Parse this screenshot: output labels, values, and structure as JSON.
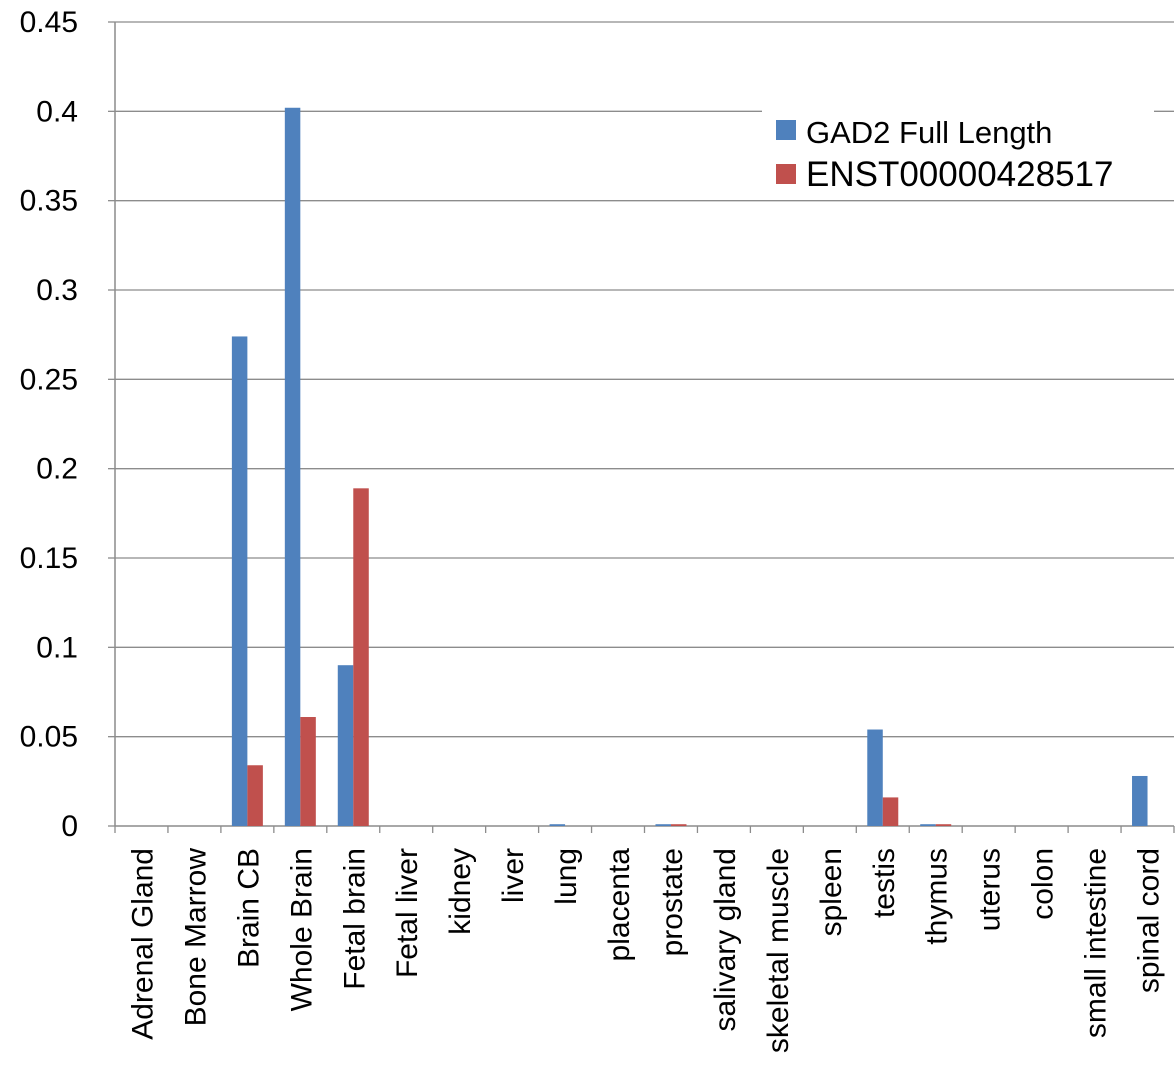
{
  "chart_data": {
    "type": "bar",
    "title": "",
    "xlabel": "",
    "ylabel": "",
    "ylim": [
      0,
      0.45
    ],
    "yticks": [
      0,
      0.05,
      0.1,
      0.15,
      0.2,
      0.25,
      0.3,
      0.35,
      0.4,
      0.45
    ],
    "ytick_labels": [
      "0",
      "0.05",
      "0.1",
      "0.15",
      "0.2",
      "0.25",
      "0.3",
      "0.35",
      "0.4",
      "0.45"
    ],
    "grid": "horizontal",
    "legend_position": "top-right",
    "categories": [
      "Adrenal Gland",
      "Bone Marrow",
      "Brain CB",
      "Whole Brain",
      "Fetal brain",
      "Fetal liver",
      "kidney",
      "liver",
      "lung",
      "placenta",
      "prostate",
      "salivary gland",
      "skeletal muscle",
      "spleen",
      "testis",
      "thymus",
      "uterus",
      "colon",
      "small intestine",
      "spinal cord"
    ],
    "series": [
      {
        "name": "GAD2 Full Length",
        "color": "#4f81bd",
        "values": [
          0,
          0,
          0.274,
          0.402,
          0.09,
          0,
          0,
          0,
          0.001,
          0,
          0.001,
          0,
          0,
          0,
          0.054,
          0.001,
          0,
          0,
          0,
          0.028
        ]
      },
      {
        "name": "ENST00000428517",
        "color": "#c0504d",
        "values": [
          0,
          0,
          0.034,
          0.061,
          0.189,
          0,
          0,
          0,
          0,
          0,
          0.001,
          0,
          0,
          0,
          0.016,
          0.001,
          0,
          0,
          0,
          0
        ]
      }
    ]
  }
}
